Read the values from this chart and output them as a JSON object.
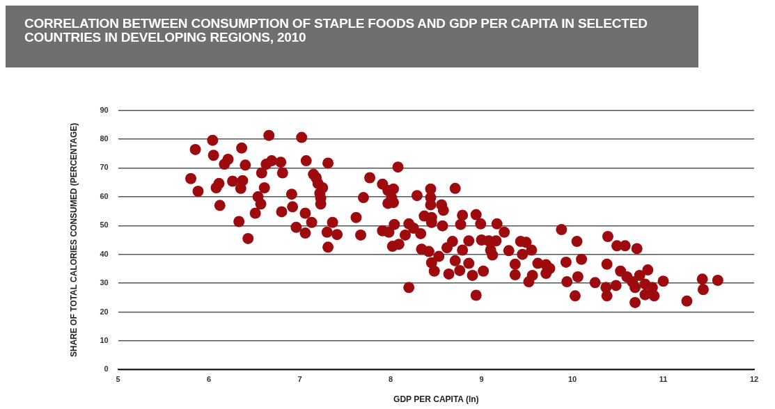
{
  "chart_data": {
    "type": "scatter",
    "title": "CORRELATION BETWEEN CONSUMPTION OF STAPLE FOODS AND GDP PER CAPITA IN SELECTED COUNTRIES IN DEVELOPING REGIONS, 2010",
    "xlabel": "GDP PER CAPITA (ln)",
    "ylabel": "SHARE OF TOTAL CALORIES CONSUMED (PERCENTAGE)",
    "xlim": [
      5,
      12
    ],
    "xticks": [
      5,
      6,
      7,
      8,
      9,
      10,
      11,
      12
    ],
    "ylim": [
      0,
      90
    ],
    "yticks": [
      0,
      10,
      20,
      30,
      40,
      50,
      60,
      70,
      80,
      90
    ],
    "grid": "y",
    "legend": false,
    "marker": "circle",
    "series": [
      {
        "color": "#9e0b0f",
        "x": [
          5.8,
          5.85,
          5.88,
          6.04,
          6.05,
          6.08,
          6.11,
          6.12,
          6.17,
          6.21,
          6.26,
          6.33,
          6.36,
          6.35,
          6.37,
          6.4,
          6.43,
          6.51,
          6.54,
          6.57,
          6.58,
          6.61,
          6.63,
          6.66,
          6.69,
          6.8,
          6.79,
          6.81,
          6.91,
          6.92,
          6.96,
          7.02,
          7.07,
          7.06,
          7.06,
          7.13,
          7.15,
          7.18,
          7.2,
          7.22,
          7.23,
          7.23,
          7.25,
          7.31,
          7.3,
          7.31,
          7.36,
          7.41,
          7.62,
          7.67,
          7.7,
          7.77,
          7.91,
          7.97,
          8.03,
          8.08,
          7.97,
          8.03,
          8.01,
          7.91,
          7.98,
          8.04,
          8.02,
          8.09,
          8.16,
          8.2,
          8.25,
          8.2,
          8.29,
          8.33,
          8.34,
          8.42,
          8.37,
          8.44,
          8.44,
          8.44,
          8.45,
          8.45,
          8.45,
          8.48,
          8.53,
          8.56,
          8.58,
          8.57,
          8.64,
          8.68,
          8.62,
          8.71,
          8.71,
          8.79,
          8.77,
          8.79,
          8.76,
          8.86,
          8.86,
          8.9,
          8.94,
          8.94,
          8.99,
          9.02,
          9.0,
          9.08,
          9.1,
          9.12,
          9.16,
          9.17,
          9.25,
          9.3,
          9.37,
          9.37,
          9.43,
          9.45,
          9.49,
          9.55,
          9.52,
          9.56,
          9.62,
          9.71,
          9.71,
          9.75,
          9.88,
          9.93,
          9.94,
          10.05,
          10.1,
          10.06,
          10.03,
          10.25,
          10.39,
          10.38,
          10.37,
          10.38,
          10.48,
          10.49,
          10.58,
          10.71,
          10.53,
          10.6,
          10.66,
          10.69,
          10.69,
          10.74,
          10.83,
          10.8,
          10.88,
          10.8,
          10.9,
          11.0,
          11.26,
          11.43,
          11.44,
          11.6
        ],
        "values": [
          66.3,
          76.4,
          61.9,
          79.6,
          74.4,
          63.1,
          64.6,
          57.0,
          71.3,
          73.0,
          65.4,
          51.4,
          76.9,
          62.9,
          65.6,
          71.0,
          45.5,
          54.3,
          60.0,
          57.5,
          68.3,
          63.1,
          71.3,
          81.3,
          72.5,
          54.8,
          72.0,
          68.3,
          60.9,
          56.5,
          49.4,
          80.6,
          72.5,
          54.3,
          47.4,
          51.1,
          67.8,
          66.6,
          64.6,
          61.2,
          59.5,
          57.5,
          63.1,
          71.7,
          47.7,
          42.5,
          51.1,
          46.9,
          52.8,
          46.7,
          59.7,
          66.6,
          64.4,
          62.2,
          62.7,
          70.3,
          57.7,
          58.0,
          59.7,
          48.2,
          47.7,
          50.4,
          42.8,
          43.5,
          46.7,
          50.6,
          49.1,
          28.5,
          60.4,
          47.2,
          41.8,
          41.0,
          53.3,
          62.7,
          59.7,
          57.2,
          51.1,
          52.8,
          37.1,
          34.2,
          39.3,
          57.2,
          55.3,
          49.9,
          33.2,
          44.5,
          42.3,
          62.9,
          37.8,
          53.6,
          50.4,
          41.5,
          34.4,
          44.7,
          36.9,
          32.7,
          25.8,
          53.8,
          50.6,
          34.2,
          45.0,
          44.7,
          41.5,
          39.8,
          44.7,
          50.6,
          47.7,
          41.3,
          36.6,
          32.9,
          44.5,
          40.0,
          44.2,
          41.5,
          30.5,
          32.7,
          36.9,
          36.4,
          33.4,
          35.1,
          48.6,
          37.3,
          30.5,
          44.5,
          38.3,
          32.2,
          25.6,
          30.2,
          46.2,
          36.6,
          28.5,
          25.6,
          29.2,
          43.0,
          43.0,
          42.0,
          34.2,
          32.2,
          30.5,
          28.5,
          23.3,
          32.7,
          34.6,
          29.7,
          28.5,
          26.0,
          25.6,
          30.7,
          23.8,
          31.4,
          27.8,
          31.0
        ]
      }
    ]
  }
}
